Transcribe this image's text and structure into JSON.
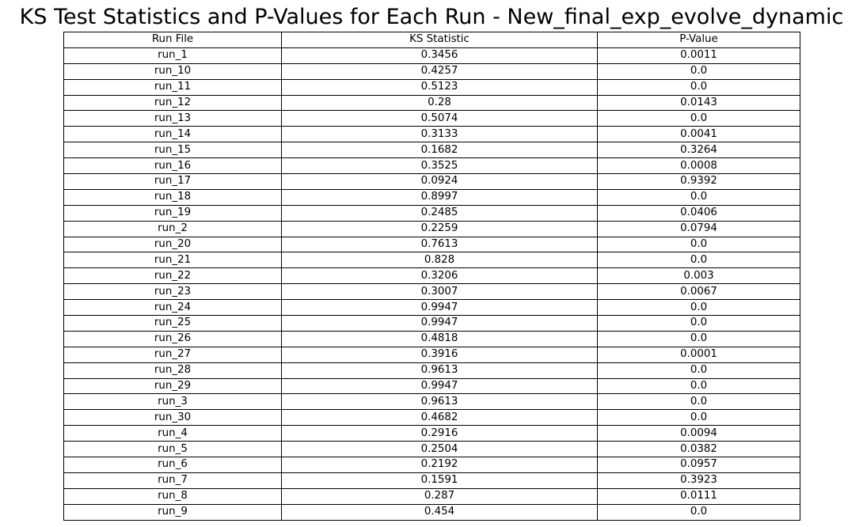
{
  "chart_data": {
    "type": "table",
    "title": "KS Test Statistics and P-Values for Each Run - New_final_exp_evolve_dynamic",
    "columns": [
      "Run File",
      "KS Statistic",
      "P-Value"
    ],
    "rows": [
      [
        "run_1",
        "0.3456",
        "0.0011"
      ],
      [
        "run_10",
        "0.4257",
        "0.0"
      ],
      [
        "run_11",
        "0.5123",
        "0.0"
      ],
      [
        "run_12",
        "0.28",
        "0.0143"
      ],
      [
        "run_13",
        "0.5074",
        "0.0"
      ],
      [
        "run_14",
        "0.3133",
        "0.0041"
      ],
      [
        "run_15",
        "0.1682",
        "0.3264"
      ],
      [
        "run_16",
        "0.3525",
        "0.0008"
      ],
      [
        "run_17",
        "0.0924",
        "0.9392"
      ],
      [
        "run_18",
        "0.8997",
        "0.0"
      ],
      [
        "run_19",
        "0.2485",
        "0.0406"
      ],
      [
        "run_2",
        "0.2259",
        "0.0794"
      ],
      [
        "run_20",
        "0.7613",
        "0.0"
      ],
      [
        "run_21",
        "0.828",
        "0.0"
      ],
      [
        "run_22",
        "0.3206",
        "0.003"
      ],
      [
        "run_23",
        "0.3007",
        "0.0067"
      ],
      [
        "run_24",
        "0.9947",
        "0.0"
      ],
      [
        "run_25",
        "0.9947",
        "0.0"
      ],
      [
        "run_26",
        "0.4818",
        "0.0"
      ],
      [
        "run_27",
        "0.3916",
        "0.0001"
      ],
      [
        "run_28",
        "0.9613",
        "0.0"
      ],
      [
        "run_29",
        "0.9947",
        "0.0"
      ],
      [
        "run_3",
        "0.9613",
        "0.0"
      ],
      [
        "run_30",
        "0.4682",
        "0.0"
      ],
      [
        "run_4",
        "0.2916",
        "0.0094"
      ],
      [
        "run_5",
        "0.2504",
        "0.0382"
      ],
      [
        "run_6",
        "0.2192",
        "0.0957"
      ],
      [
        "run_7",
        "0.1591",
        "0.3923"
      ],
      [
        "run_8",
        "0.287",
        "0.0111"
      ],
      [
        "run_9",
        "0.454",
        "0.0"
      ]
    ]
  }
}
